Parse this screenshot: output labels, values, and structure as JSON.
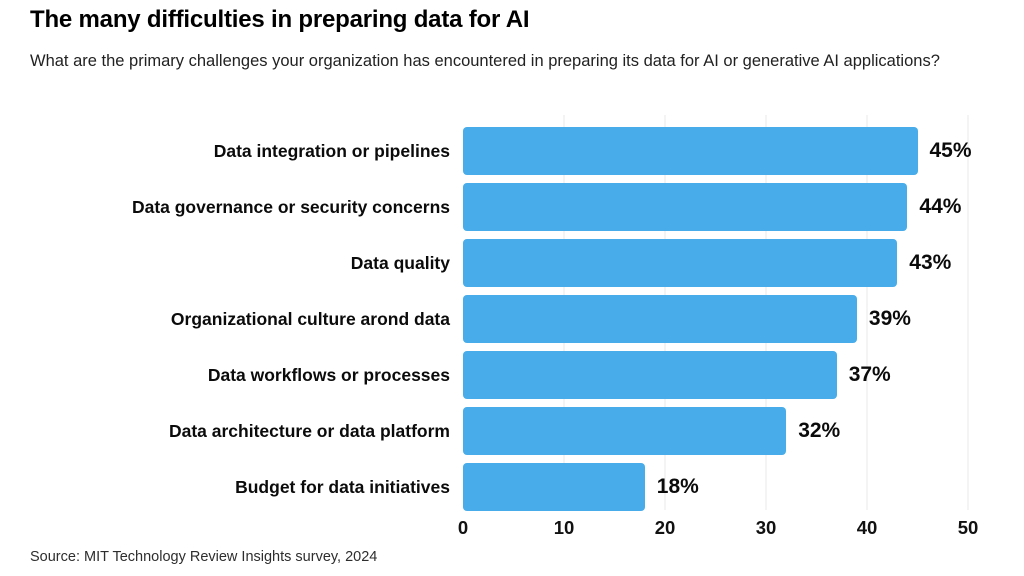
{
  "header": {
    "title": "The many difficulties in preparing data for AI",
    "subtitle": "What are the primary challenges your organization has encountered in preparing its data for AI or generative AI applications?"
  },
  "chart_data": {
    "type": "bar",
    "orientation": "horizontal",
    "title": "The many difficulties in preparing data for AI",
    "categories": [
      "Data integration or pipelines",
      "Data governance or security concerns",
      "Data quality",
      "Organizational culture arond data",
      "Data workflows or processes",
      "Data architecture or data platform",
      "Budget for data initiatives"
    ],
    "values": [
      45,
      44,
      43,
      39,
      37,
      32,
      18
    ],
    "value_labels": [
      "45%",
      "44%",
      "43%",
      "39%",
      "37%",
      "32%",
      "18%"
    ],
    "xlim": [
      0,
      50
    ],
    "x_ticks": [
      0,
      10,
      20,
      30,
      40,
      50
    ],
    "xlabel": "",
    "ylabel": "",
    "grid": "vertical",
    "legend": "none",
    "bar_color": "#47ACE9",
    "gridline_color": "#E8E8E8"
  },
  "footer": {
    "source": "Source: MIT Technology Review Insights survey, 2024"
  }
}
